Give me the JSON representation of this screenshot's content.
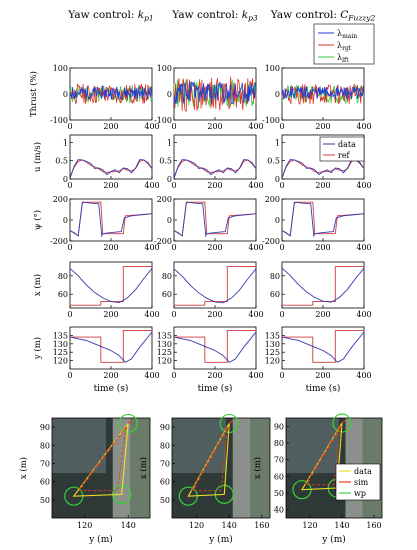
{
  "chart_data": {
    "type": "line",
    "column_titles": [
      "Yaw control: k_p1",
      "Yaw control: k_p3",
      "Yaw control: C_Fuzzy2"
    ],
    "time_xlabel": "time (s)",
    "map_xlabel": "y (m)",
    "map_ylabel": "x (m)",
    "colors": {
      "main": "#1f3fd6",
      "rgt": "#e0302a",
      "lft": "#33cc33",
      "data": "#3a3ab0",
      "ref": "#d03a3a",
      "sim": "#e0401e",
      "wp": "#37d237",
      "mapdata": "#f0e020"
    },
    "rows": [
      {
        "key": "thrust",
        "ylabel": "Thrust (%)",
        "xlim": [
          0,
          400
        ],
        "ylim": [
          -100,
          100
        ],
        "xticks": [
          0,
          200,
          400
        ],
        "yticks": [
          -100,
          0,
          100
        ],
        "legend": [
          "λmain",
          "λrgt",
          "λlft"
        ],
        "legend_on": [
          false,
          false,
          true
        ]
      },
      {
        "key": "u",
        "ylabel": "u (m/s)",
        "xlim": [
          0,
          400
        ],
        "ylim": [
          0,
          1.2
        ],
        "xticks": [
          0,
          200,
          400
        ],
        "yticks": [
          0,
          0.5,
          1
        ],
        "legend": [
          "data",
          "ref"
        ],
        "legend_on": [
          false,
          false,
          true
        ],
        "series": [
          {
            "name": "data",
            "x": [
              0,
              20,
              40,
              60,
              80,
              100,
              120,
              140,
              160,
              180,
              200,
              220,
              240,
              260,
              280,
              300,
              320,
              340,
              360,
              380,
              400
            ],
            "y": [
              0.05,
              0.35,
              0.5,
              0.55,
              0.48,
              0.4,
              0.32,
              0.3,
              0.22,
              0.15,
              0.2,
              0.22,
              0.2,
              0.3,
              0.25,
              0.2,
              0.3,
              0.5,
              0.55,
              0.45,
              0.25
            ]
          },
          {
            "name": "ref",
            "x": [
              0,
              20,
              40,
              60,
              80,
              100,
              120,
              140,
              160,
              180,
              200,
              220,
              240,
              260,
              280,
              300,
              320,
              340,
              360,
              380,
              400
            ],
            "y": [
              0.05,
              0.32,
              0.48,
              0.52,
              0.46,
              0.38,
              0.33,
              0.28,
              0.2,
              0.18,
              0.2,
              0.2,
              0.22,
              0.28,
              0.24,
              0.22,
              0.28,
              0.48,
              0.52,
              0.42,
              0.28
            ]
          }
        ]
      },
      {
        "key": "psi",
        "ylabel": "ψ (°)",
        "xlim": [
          0,
          400
        ],
        "ylim": [
          -200,
          200
        ],
        "xticks": [
          0,
          200,
          400
        ],
        "yticks": [
          -200,
          0,
          200
        ],
        "series": [
          {
            "name": "data",
            "x": [
              0,
              20,
              40,
              60,
              70,
              100,
              140,
              155,
              160,
              200,
              250,
              265,
              300,
              350,
              400
            ],
            "y": [
              -100,
              -120,
              -150,
              160,
              170,
              160,
              155,
              -150,
              -130,
              -120,
              -110,
              20,
              40,
              50,
              60
            ]
          },
          {
            "name": "ref",
            "x": [
              0,
              40,
              60,
              150,
              160,
              260,
              270,
              400
            ],
            "y": [
              -100,
              -150,
              170,
              170,
              -130,
              -130,
              40,
              60
            ]
          }
        ]
      },
      {
        "key": "x",
        "ylabel": "x (m)",
        "xlim": [
          0,
          400
        ],
        "ylim": [
          45,
          95
        ],
        "xticks": [
          0,
          200,
          400
        ],
        "yticks": [
          60,
          80
        ],
        "series": [
          {
            "name": "data",
            "x": [
              0,
              40,
              80,
              120,
              160,
              200,
              240,
              280,
              320,
              360,
              400
            ],
            "y": [
              88,
              80,
              70,
              62,
              56,
              52,
              51,
              56,
              65,
              77,
              88
            ]
          },
          {
            "name": "ref",
            "x": [
              0,
              150,
              150,
              260,
              260,
              400
            ],
            "y": [
              48,
              48,
              52,
              52,
              90,
              90
            ]
          }
        ]
      },
      {
        "key": "y",
        "ylabel": "y (m)",
        "xlim": [
          0,
          400
        ],
        "ylim": [
          115,
          140
        ],
        "xticks": [
          0,
          200,
          400
        ],
        "yticks": [
          120,
          125,
          130,
          135
        ],
        "series": [
          {
            "name": "data",
            "x": [
              0,
              40,
              80,
              120,
              160,
              200,
              240,
              270,
              300,
              340,
              400
            ],
            "y": [
              134,
              133,
              132,
              130,
              128,
              126,
              123,
              119,
              121,
              128,
              137
            ]
          },
          {
            "name": "ref",
            "x": [
              0,
              150,
              150,
              260,
              260,
              400
            ],
            "y": [
              134,
              134,
              119,
              119,
              138,
              138
            ]
          }
        ]
      }
    ],
    "time_xticks": [
      0,
      200,
      400
    ],
    "map_columns": [
      {
        "xticks": [
          120,
          140
        ],
        "xlim": [
          105,
          150
        ],
        "ylim": [
          40,
          95
        ],
        "yticks": [
          50,
          60,
          70,
          80,
          90
        ]
      },
      {
        "xticks": [
          120,
          140,
          160
        ],
        "xlim": [
          105,
          165
        ],
        "ylim": [
          40,
          95
        ],
        "yticks": [
          50,
          60,
          70,
          80,
          90
        ]
      },
      {
        "xticks": [
          120,
          140,
          160
        ],
        "xlim": [
          105,
          165
        ],
        "ylim": [
          35,
          95
        ],
        "yticks": [
          40,
          50,
          60,
          70,
          80,
          90
        ]
      }
    ],
    "map_legend": [
      "data",
      "sim",
      "wp"
    ],
    "waypoints": [
      {
        "y": 115,
        "x": 52
      },
      {
        "y": 137,
        "x": 53
      },
      {
        "y": 140,
        "x": 92
      }
    ]
  }
}
